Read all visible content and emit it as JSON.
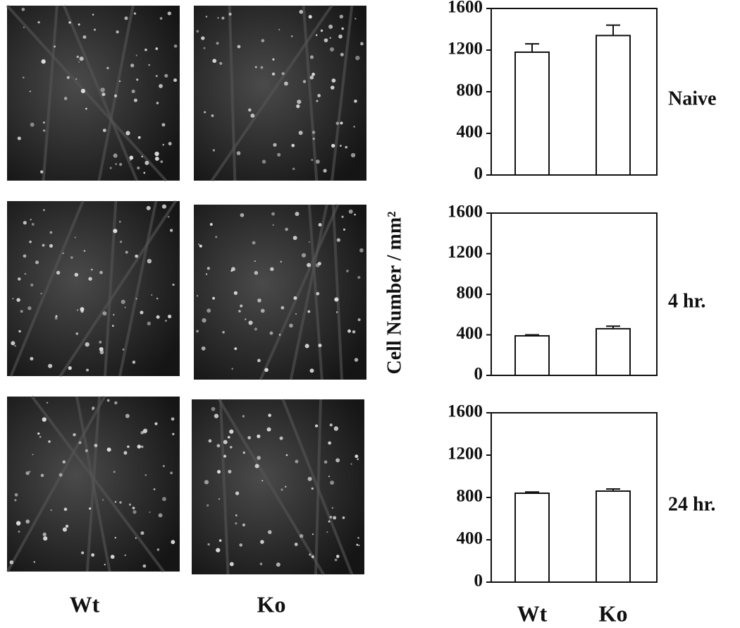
{
  "micrographs": {
    "columns": [
      "Wt",
      "Ko"
    ]
  },
  "chart_data": [
    {
      "type": "bar",
      "label": "Naive",
      "categories": [
        null,
        null
      ],
      "values": [
        1180,
        1340
      ],
      "errors": [
        80,
        100
      ],
      "ylim": [
        0,
        1600
      ],
      "yticks": [
        0,
        400,
        800,
        1200,
        1600
      ]
    },
    {
      "type": "bar",
      "label": "4 hr.",
      "ylabel": "Cell Number / mm²",
      "categories": [
        null,
        null
      ],
      "values": [
        390,
        460
      ],
      "errors": [
        10,
        25
      ],
      "ylim": [
        0,
        1600
      ],
      "yticks": [
        0,
        400,
        800,
        1200,
        1600
      ]
    },
    {
      "type": "bar",
      "label": "24 hr.",
      "categories": [
        "Wt",
        "Ko"
      ],
      "values": [
        840,
        860
      ],
      "errors": [
        12,
        20
      ],
      "ylim": [
        0,
        1600
      ],
      "yticks": [
        0,
        400,
        800,
        1200,
        1600
      ]
    }
  ]
}
